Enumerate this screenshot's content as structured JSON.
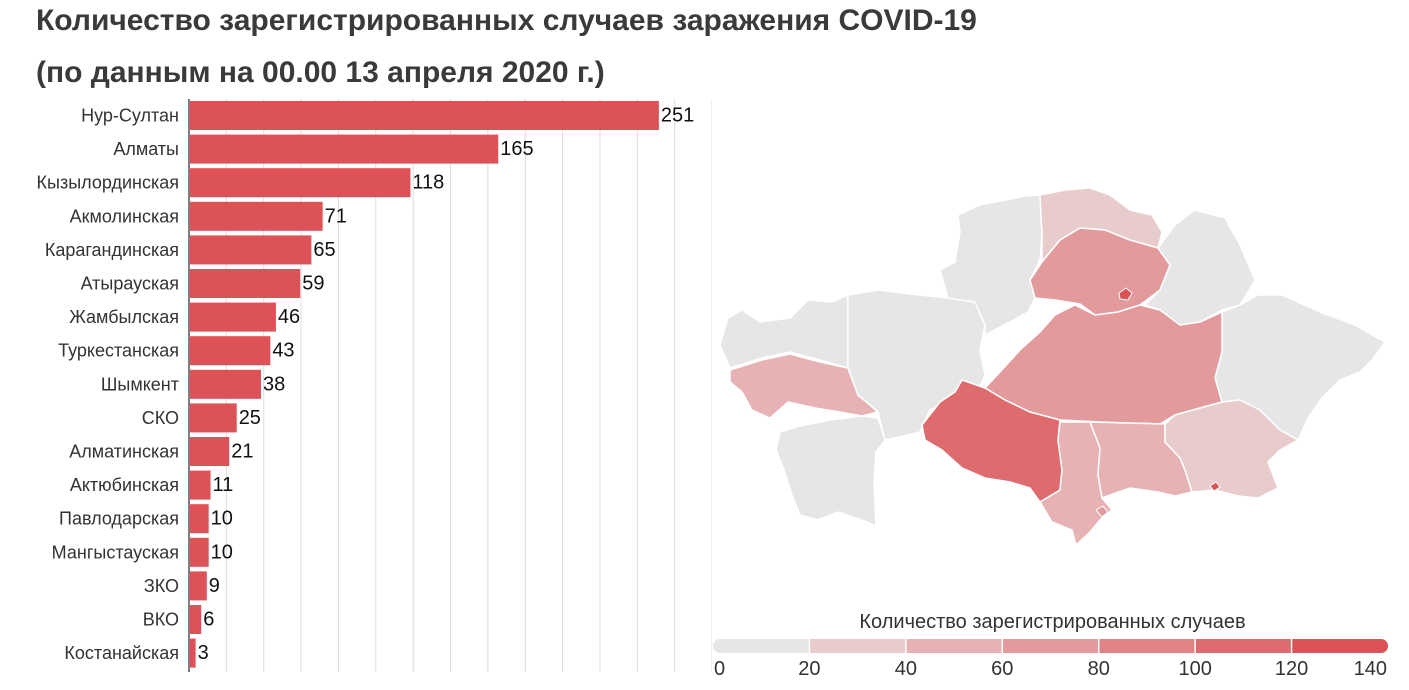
{
  "title_line1": "Количество зарегистрированных случаев заражения COVID-19",
  "title_line2": "(по данным на 00.00 13 апреля 2020 г.)",
  "colors": {
    "bar": "#dd5257",
    "grid": "#dddddd",
    "axis": "#555555",
    "map_scale": [
      "#e6e6e6",
      "#e8cbcb",
      "#e6b2b3",
      "#e39a9c",
      "#e08384",
      "#de6b6d",
      "#dd5257"
    ]
  },
  "chart_data": [
    {
      "type": "bar",
      "orientation": "horizontal",
      "categories": [
        "Нур-Султан",
        "Алматы",
        "Кызылординская",
        "Акмолинская",
        "Карагандинская",
        "Атырауская",
        "Жамбылская",
        "Туркестанская",
        "Шымкент",
        "СКО",
        "Алматинская",
        "Актюбинская",
        "Павлодарская",
        "Мангыстауская",
        "ЗКО",
        "ВКО",
        "Костанайская"
      ],
      "values": [
        251,
        165,
        118,
        71,
        65,
        59,
        46,
        43,
        38,
        25,
        21,
        11,
        10,
        10,
        9,
        6,
        3
      ],
      "xlim": [
        0,
        280
      ],
      "grid": true,
      "data_labels": true
    },
    {
      "type": "choropleth",
      "legend_title": "Количество зарегистрированных случаев",
      "legend_ticks": [
        "0",
        "20",
        "40",
        "60",
        "80",
        "100",
        "120",
        "140"
      ],
      "scale_range": [
        0,
        140
      ],
      "legend_placement": "bottom"
    }
  ]
}
